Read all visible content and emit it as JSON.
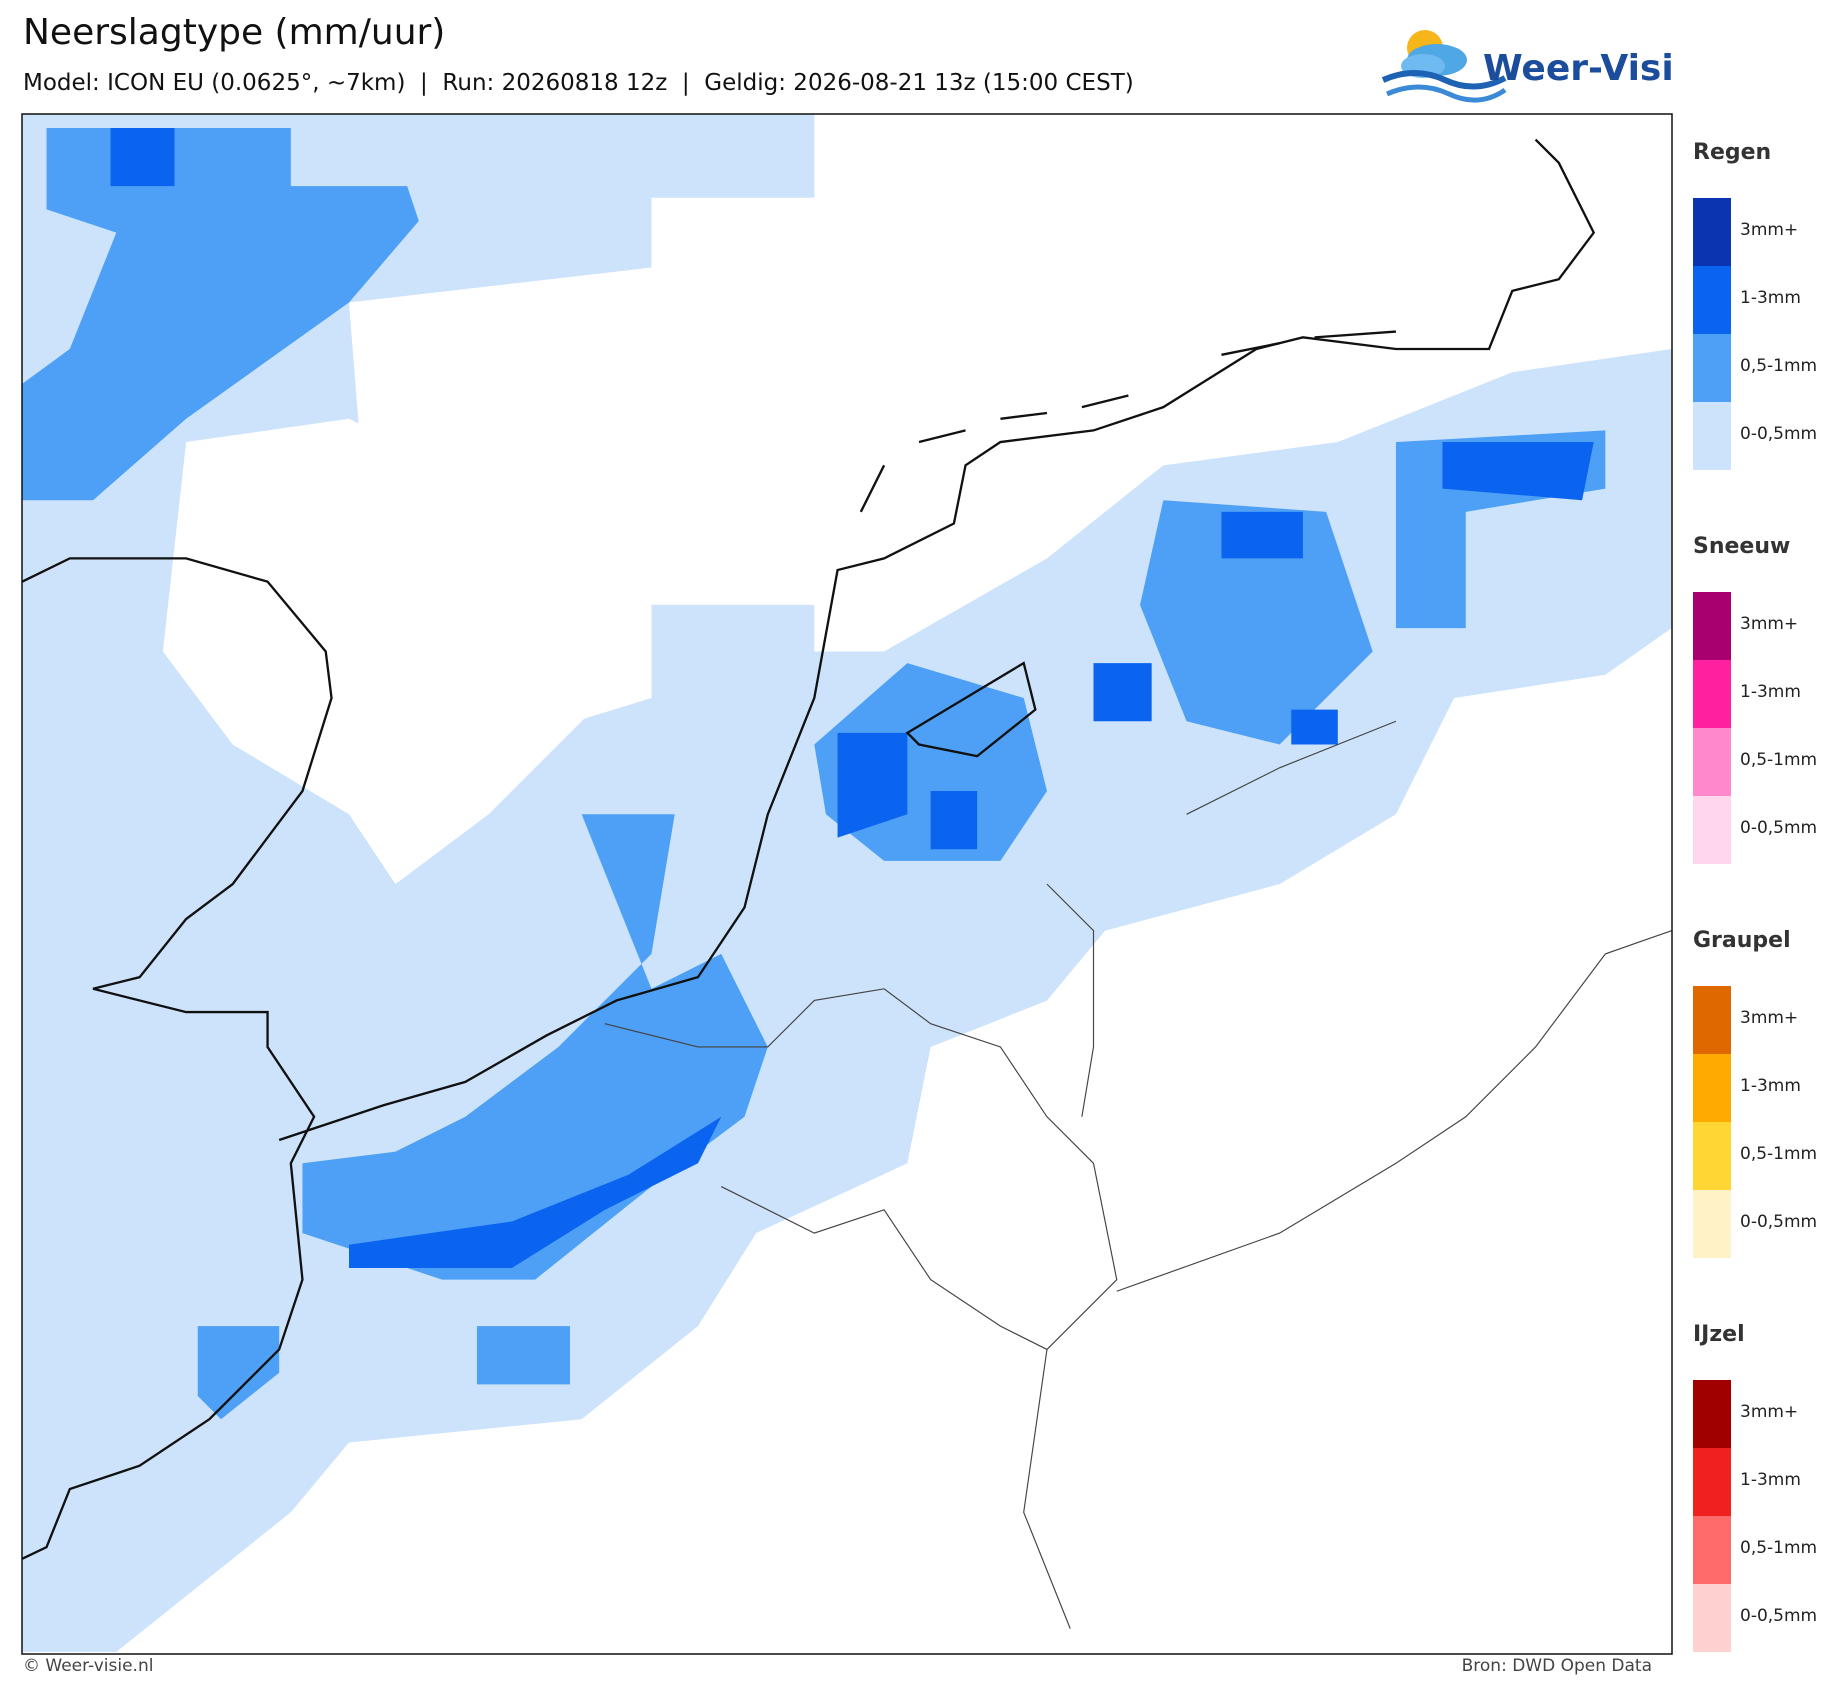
{
  "header": {
    "title": "Neerslagtype (mm/uur)",
    "subtitle": "Model: ICON EU (0.0625°, ~7km)  |  Run: 20260818 12z  |  Geldig: 2026-08-21 13z (15:00 CEST)"
  },
  "logo": {
    "text": "Weer-Visie"
  },
  "legend": [
    {
      "title": "Regen",
      "items": [
        {
          "label": "3mm+",
          "color": "#0a35b0"
        },
        {
          "label": "1-3mm",
          "color": "#0a64f0"
        },
        {
          "label": "0,5-1mm",
          "color": "#4da0f5"
        },
        {
          "label": "0-0,5mm",
          "color": "#cce3fb"
        }
      ]
    },
    {
      "title": "Sneeuw",
      "items": [
        {
          "label": "3mm+",
          "color": "#a8006e"
        },
        {
          "label": "1-3mm",
          "color": "#ff20a0"
        },
        {
          "label": "0,5-1mm",
          "color": "#ff88cc"
        },
        {
          "label": "0-0,5mm",
          "color": "#ffd6ee"
        }
      ]
    },
    {
      "title": "Graupel",
      "items": [
        {
          "label": "3mm+",
          "color": "#e06800"
        },
        {
          "label": "1-3mm",
          "color": "#ffaa00"
        },
        {
          "label": "0,5-1mm",
          "color": "#ffd633"
        },
        {
          "label": "0-0,5mm",
          "color": "#fff2c6"
        }
      ]
    },
    {
      "title": "IJzel",
      "items": [
        {
          "label": "3mm+",
          "color": "#a00000"
        },
        {
          "label": "1-3mm",
          "color": "#ee2020"
        },
        {
          "label": "0,5-1mm",
          "color": "#ff6a6a"
        },
        {
          "label": "0-0,5mm",
          "color": "#ffd0d0"
        }
      ]
    }
  ],
  "footer": {
    "left": "© Weer-visie.nl",
    "right": "Bron: DWD Open Data"
  }
}
